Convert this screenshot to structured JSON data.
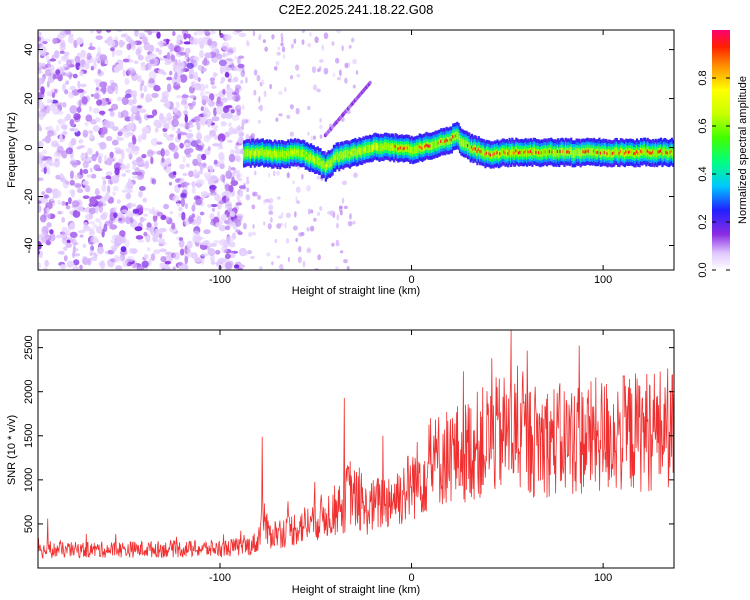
{
  "title": "C2E2.2025.241.18.22.G08",
  "chart_data": [
    {
      "type": "heatmap",
      "title": "C2E2.2025.241.18.22.G08",
      "xlabel": "Height of straight line (km)",
      "ylabel": "Frequency (Hz)",
      "xlim": [
        -195,
        137
      ],
      "ylim": [
        -50,
        48
      ],
      "xticks": [
        -100,
        0,
        100
      ],
      "yticks": [
        -40,
        -20,
        0,
        20,
        40
      ],
      "colorbar": {
        "label": "Normalized spectral amplitude",
        "range": [
          0,
          1
        ],
        "ticks": [
          0.0,
          0.2,
          0.4,
          0.6,
          0.8
        ]
      },
      "tracked_signal": {
        "description": "dominant frequency ridge",
        "x": [
          -90,
          -80,
          -70,
          -60,
          -50,
          -45,
          -40,
          -35,
          -30,
          -20,
          -10,
          0,
          10,
          20,
          23,
          25,
          30,
          40,
          50,
          60,
          80,
          100,
          120,
          137
        ],
        "y": [
          -3,
          -2,
          -3,
          -2,
          -5,
          -8,
          -4,
          -3,
          -2,
          0,
          0,
          -1,
          1,
          3,
          5,
          3,
          0,
          -3,
          -2,
          -2,
          -2,
          -2,
          -2,
          -2
        ]
      }
    },
    {
      "type": "line",
      "xlabel": "Height of straight line (km)",
      "ylabel": "SNR (10 * v/v)",
      "xlim": [
        -195,
        137
      ],
      "ylim": [
        0,
        2700
      ],
      "xticks": [
        -100,
        0,
        100
      ],
      "yticks": [
        500,
        1000,
        1500,
        2000,
        2500
      ],
      "series": [
        {
          "name": "SNR",
          "color": "#f03030",
          "envelope_x": [
            -195,
            -150,
            -100,
            -85,
            -80,
            -78,
            -75,
            -65,
            -55,
            -45,
            -35,
            -33,
            -25,
            -15,
            -5,
            5,
            15,
            25,
            35,
            45,
            52,
            60,
            80,
            100,
            120,
            137
          ],
          "envelope_mean": [
            200,
            210,
            220,
            250,
            300,
            650,
            380,
            420,
            500,
            600,
            700,
            900,
            650,
            750,
            850,
            1050,
            1250,
            1300,
            1400,
            1500,
            1550,
            1450,
            1450,
            1500,
            1550,
            1600
          ],
          "peaks": [
            [
              -190,
              560
            ],
            [
              -78,
              1490
            ],
            [
              -35,
              1930
            ],
            [
              -15,
              1500
            ],
            [
              10,
              1700
            ],
            [
              27,
              2230
            ],
            [
              42,
              2380
            ],
            [
              52,
              2700
            ],
            [
              62,
              2000
            ],
            [
              85,
              1950
            ],
            [
              115,
              1980
            ],
            [
              137,
              2150
            ]
          ]
        }
      ]
    }
  ]
}
